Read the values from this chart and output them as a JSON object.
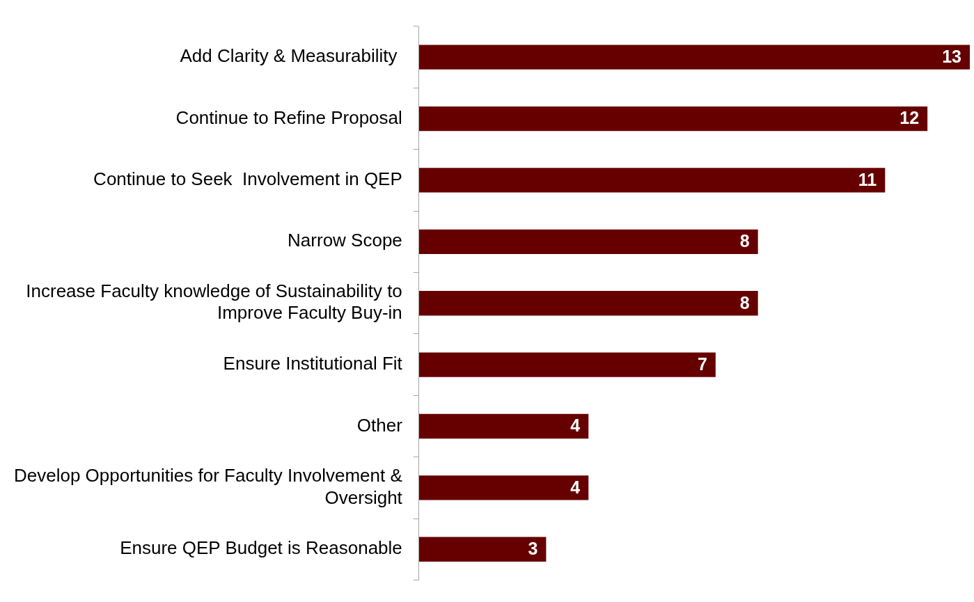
{
  "chart_data": {
    "type": "bar",
    "orientation": "horizontal",
    "categories": [
      "Add Clarity & Measurability ",
      "Continue to Refine Proposal",
      "Continue to Seek  Involvement in QEP",
      "Narrow Scope",
      "Increase Faculty knowledge of Sustainability to Improve Faculty Buy-in",
      "Ensure Institutional Fit",
      "Other",
      "Develop Opportunities for Faculty Involvement & Oversight",
      "Ensure QEP Budget is Reasonable"
    ],
    "values": [
      13,
      12,
      11,
      8,
      8,
      7,
      4,
      4,
      3
    ],
    "color": "#660000",
    "data_labels": true,
    "legend": false
  }
}
